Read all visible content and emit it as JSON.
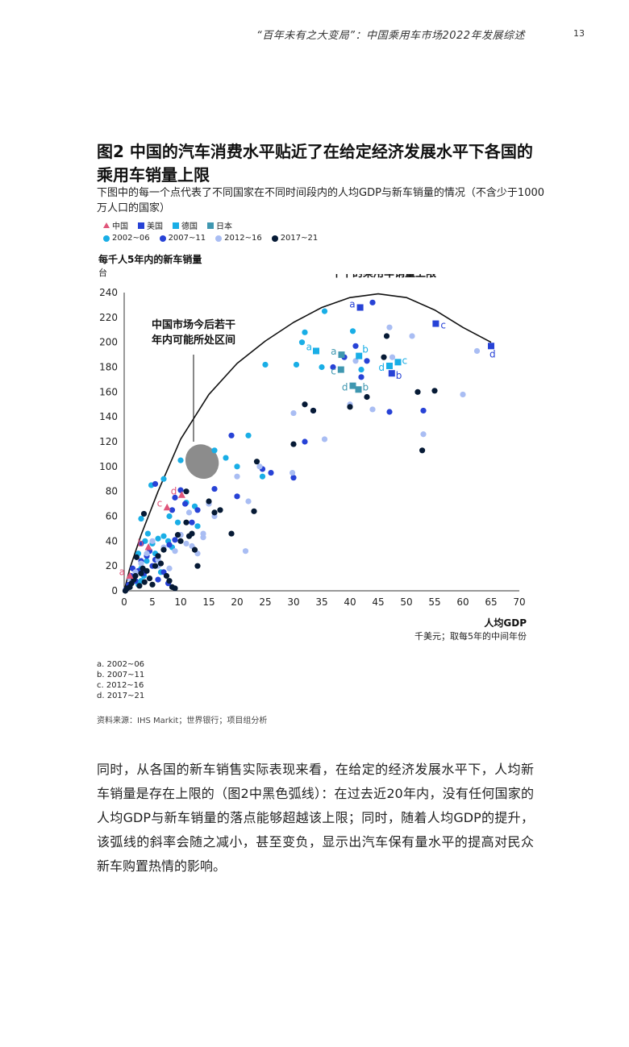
{
  "header": {
    "running_title": "“百年未有之大变局”：中国乘用车市场2022年发展综述",
    "page_number": "13"
  },
  "figure": {
    "title": "图2 中国的汽车消费水平贴近了在给定经济发展水平下各国的乘用车销量上限",
    "subtitle": "下图中的每一个点代表了不同国家在不同时间段内的人均GDP与新车销量的情况（不含少于1000万人口的国家）",
    "legend_countries": [
      {
        "label": "中国",
        "color": "#e0557a",
        "icon": "triangle-icon"
      },
      {
        "label": "美国",
        "color": "#2742d6",
        "icon": "square-icon"
      },
      {
        "label": "德国",
        "color": "#19aee6",
        "icon": "square-icon"
      },
      {
        "label": "日本",
        "color": "#3f97b0",
        "icon": "square-icon"
      }
    ],
    "legend_periods": [
      {
        "label": "2002~06",
        "color": "#19aee6",
        "icon": "dot-icon"
      },
      {
        "label": "2007~11",
        "color": "#2742d6",
        "icon": "dot-icon"
      },
      {
        "label": "2012~16",
        "color": "#a9bdf3",
        "icon": "dot-icon"
      },
      {
        "label": "2017~21",
        "color": "#061a35",
        "icon": "dot-icon"
      }
    ],
    "notes": [
      "a.  2002~06",
      "b.  2007~11",
      "c.  2012~16",
      "d.  2017~21"
    ],
    "source": "资料来源：IHS Markit；世界银行；项目组分析"
  },
  "chart_data": {
    "type": "scatter",
    "ylabel": "每千人5年内的新车销量",
    "yunit": "台",
    "xlabel": "人均GDP",
    "xunit": "千美元；取每5年的中间年份",
    "xlim": [
      0,
      70
    ],
    "ylim": [
      0,
      240
    ],
    "xticks": [
      "0",
      "5",
      "10",
      "15",
      "20",
      "25",
      "30",
      "35",
      "40",
      "45",
      "50",
      "55",
      "60",
      "65",
      "70"
    ],
    "yticks": [
      "0",
      "20",
      "40",
      "60",
      "80",
      "100",
      "120",
      "140",
      "160",
      "180",
      "200",
      "220",
      "240"
    ],
    "annotations": {
      "upper_bound": "在给定经济发展水平下的乘用车销量上限",
      "china_zone": "中国市场今后若干年内可能所处区间"
    },
    "upper_bound_curve": [
      [
        0,
        0
      ],
      [
        1,
        18
      ],
      [
        3,
        45
      ],
      [
        6,
        80
      ],
      [
        10,
        122
      ],
      [
        15,
        158
      ],
      [
        20,
        183
      ],
      [
        25,
        201
      ],
      [
        30,
        216
      ],
      [
        35,
        228
      ],
      [
        40,
        236
      ],
      [
        45,
        239
      ],
      [
        50,
        236
      ],
      [
        55,
        226
      ],
      [
        60,
        212
      ],
      [
        65,
        200
      ]
    ],
    "china_zone": {
      "x": 13.8,
      "y": 104
    },
    "highlight_points": [
      {
        "country": "中国",
        "period": "a",
        "label": "a",
        "x": 1.0,
        "y": 12
      },
      {
        "country": "中国",
        "period": "b",
        "label": "b",
        "x": 4.3,
        "y": 35
      },
      {
        "country": "中国",
        "period": "c",
        "label": "c",
        "x": 7.6,
        "y": 67
      },
      {
        "country": "中国",
        "period": "d",
        "label": "d",
        "x": 10.2,
        "y": 77
      },
      {
        "country": "美国",
        "period": "a",
        "label": "a",
        "x": 41.8,
        "y": 228
      },
      {
        "country": "美国",
        "period": "b",
        "label": "b",
        "x": 47.4,
        "y": 175
      },
      {
        "country": "美国",
        "period": "c",
        "label": "c",
        "x": 55.2,
        "y": 215
      },
      {
        "country": "美国",
        "period": "d",
        "label": "d",
        "x": 65.0,
        "y": 197
      },
      {
        "country": "德国",
        "period": "a",
        "label": "a",
        "x": 34.0,
        "y": 193
      },
      {
        "country": "德国",
        "period": "b",
        "label": "b",
        "x": 41.6,
        "y": 189
      },
      {
        "country": "德国",
        "period": "c",
        "label": "c",
        "x": 48.5,
        "y": 184
      },
      {
        "country": "德国",
        "period": "d",
        "label": "d",
        "x": 47.0,
        "y": 181
      },
      {
        "country": "日本",
        "period": "a",
        "label": "a",
        "x": 38.5,
        "y": 190
      },
      {
        "country": "日本",
        "period": "b",
        "label": "b",
        "x": 41.5,
        "y": 162
      },
      {
        "country": "日本",
        "period": "c",
        "label": "c",
        "x": 38.4,
        "y": 178
      },
      {
        "country": "日本",
        "period": "d",
        "label": "d",
        "x": 40.5,
        "y": 165
      }
    ],
    "series": [
      {
        "name": "2002~06",
        "points": [
          [
            1,
            3
          ],
          [
            1.8,
            8
          ],
          [
            2.5,
            5
          ],
          [
            3,
            18
          ],
          [
            3.5,
            12
          ],
          [
            4,
            24
          ],
          [
            2.5,
            30
          ],
          [
            3.7,
            40
          ],
          [
            4.2,
            46
          ],
          [
            5,
            38
          ],
          [
            5.5,
            30
          ],
          [
            6,
            42
          ],
          [
            7,
            44
          ],
          [
            7.8,
            40
          ],
          [
            8.5,
            35
          ],
          [
            8,
            60
          ],
          [
            9.5,
            55
          ],
          [
            11,
            71
          ],
          [
            12.5,
            68
          ],
          [
            13,
            52
          ],
          [
            4.8,
            85
          ],
          [
            7,
            90
          ],
          [
            3,
            58
          ],
          [
            10,
            105
          ],
          [
            16,
            113
          ],
          [
            18,
            107
          ],
          [
            22,
            125
          ],
          [
            20,
            100
          ],
          [
            24.5,
            92
          ],
          [
            25,
            182
          ],
          [
            30.5,
            182
          ],
          [
            32,
            208
          ],
          [
            31.5,
            200
          ],
          [
            35,
            180
          ],
          [
            35.5,
            225
          ],
          [
            40.5,
            209
          ],
          [
            42,
            178
          ],
          [
            3,
            8
          ],
          [
            6.5,
            15
          ]
        ]
      },
      {
        "name": "2007~11",
        "points": [
          [
            0.3,
            1
          ],
          [
            0.8,
            5
          ],
          [
            1.2,
            12
          ],
          [
            1.5,
            18
          ],
          [
            2,
            8
          ],
          [
            2.5,
            16
          ],
          [
            3,
            24
          ],
          [
            3.5,
            14
          ],
          [
            4,
            28
          ],
          [
            4.5,
            32
          ],
          [
            5,
            20
          ],
          [
            5.5,
            25
          ],
          [
            6,
            9
          ],
          [
            7,
            15
          ],
          [
            8,
            37
          ],
          [
            9,
            41
          ],
          [
            10,
            45
          ],
          [
            8.5,
            65
          ],
          [
            9,
            75
          ],
          [
            10,
            81
          ],
          [
            10.8,
            70
          ],
          [
            12,
            55
          ],
          [
            13,
            65
          ],
          [
            16,
            82
          ],
          [
            19,
            125
          ],
          [
            20,
            76
          ],
          [
            24.5,
            98
          ],
          [
            26,
            95
          ],
          [
            30,
            91
          ],
          [
            32,
            120
          ],
          [
            33.5,
            145
          ],
          [
            37,
            180
          ],
          [
            39,
            188
          ],
          [
            41,
            197
          ],
          [
            42,
            172
          ],
          [
            43,
            185
          ],
          [
            44,
            232
          ],
          [
            47,
            144
          ],
          [
            53,
            145
          ],
          [
            7.8,
            6
          ],
          [
            5.5,
            86
          ],
          [
            3,
            38
          ]
        ]
      },
      {
        "name": "2012~16",
        "points": [
          [
            1,
            10
          ],
          [
            2,
            15
          ],
          [
            3,
            22
          ],
          [
            4,
            30
          ],
          [
            5,
            40
          ],
          [
            6,
            25
          ],
          [
            7,
            35
          ],
          [
            8,
            18
          ],
          [
            9,
            32
          ],
          [
            10,
            45
          ],
          [
            11,
            38
          ],
          [
            12,
            36
          ],
          [
            13,
            30
          ],
          [
            14,
            43
          ],
          [
            15,
            70
          ],
          [
            16,
            60
          ],
          [
            11.5,
            63
          ],
          [
            20,
            92
          ],
          [
            22,
            72
          ],
          [
            24,
            100
          ],
          [
            29.8,
            95
          ],
          [
            30,
            143
          ],
          [
            35.5,
            122
          ],
          [
            40,
            150
          ],
          [
            41,
            185
          ],
          [
            44,
            146
          ],
          [
            47,
            212
          ],
          [
            47.5,
            188
          ],
          [
            51,
            205
          ],
          [
            53,
            126
          ],
          [
            60,
            158
          ],
          [
            62.5,
            193
          ],
          [
            6,
            20
          ],
          [
            14,
            46
          ],
          [
            21.5,
            32
          ]
        ]
      },
      {
        "name": "2017~21",
        "points": [
          [
            0.2,
            0
          ],
          [
            0.5,
            2
          ],
          [
            1,
            3
          ],
          [
            1.3,
            6
          ],
          [
            1.7,
            9
          ],
          [
            2,
            12
          ],
          [
            2.2,
            27
          ],
          [
            2.7,
            4
          ],
          [
            3,
            14
          ],
          [
            3.3,
            18
          ],
          [
            3.6,
            7
          ],
          [
            4,
            16
          ],
          [
            4.5,
            10
          ],
          [
            5,
            5
          ],
          [
            5.5,
            20
          ],
          [
            6,
            28
          ],
          [
            6.5,
            22
          ],
          [
            7,
            33
          ],
          [
            7.5,
            12
          ],
          [
            8,
            8
          ],
          [
            8.5,
            3
          ],
          [
            9,
            2
          ],
          [
            9.5,
            45
          ],
          [
            10,
            40
          ],
          [
            11,
            55
          ],
          [
            11.5,
            44
          ],
          [
            12,
            46
          ],
          [
            12.5,
            33
          ],
          [
            13,
            20
          ],
          [
            15,
            72
          ],
          [
            16,
            63
          ],
          [
            17,
            65
          ],
          [
            19,
            46
          ],
          [
            23,
            64
          ],
          [
            23.5,
            104
          ],
          [
            30,
            118
          ],
          [
            32,
            150
          ],
          [
            33.5,
            145
          ],
          [
            40,
            148
          ],
          [
            43,
            156
          ],
          [
            46,
            188
          ],
          [
            46.5,
            205
          ],
          [
            52,
            160
          ],
          [
            52.8,
            113
          ],
          [
            55,
            161
          ],
          [
            3.5,
            62
          ],
          [
            11,
            80
          ]
        ]
      }
    ]
  },
  "body_text": "同时，从各国的新车销售实际表现来看，在给定的经济发展水平下，人均新车销量是存在上限的（图2中黑色弧线）：在过去近20年内，没有任何国家的人均GDP与新车销量的落点能够超越该上限；同时，随着人均GDP的提升，该弧线的斜率会随之减小，甚至变负，显示出汽车保有量水平的提高对民众新车购置热情的影响。"
}
